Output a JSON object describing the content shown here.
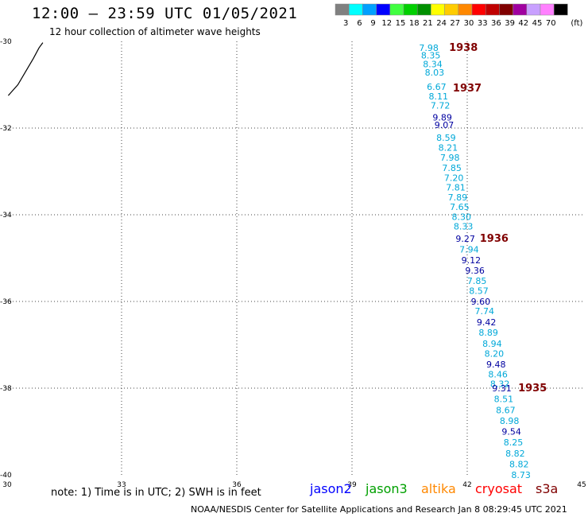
{
  "header": {
    "title": "12:00 – 23:59 UTC 01/05/2021",
    "subtitle": "12 hour collection of altimeter wave heights"
  },
  "colorbar": {
    "unit": "(ft)",
    "bins": [
      {
        "label": "3",
        "color": "#808080"
      },
      {
        "label": "6",
        "color": "#00ffff"
      },
      {
        "label": "9",
        "color": "#00a0ff"
      },
      {
        "label": "12",
        "color": "#0000ff"
      },
      {
        "label": "15",
        "color": "#40ff40"
      },
      {
        "label": "18",
        "color": "#00d000"
      },
      {
        "label": "21",
        "color": "#009000"
      },
      {
        "label": "24",
        "color": "#ffff00"
      },
      {
        "label": "27",
        "color": "#ffcc00"
      },
      {
        "label": "30",
        "color": "#ff8800"
      },
      {
        "label": "33",
        "color": "#ff0000"
      },
      {
        "label": "36",
        "color": "#c00000"
      },
      {
        "label": "39",
        "color": "#800000"
      },
      {
        "label": "42",
        "color": "#a000a0"
      },
      {
        "label": "45",
        "color": "#c8a0ff"
      },
      {
        "label": "70",
        "color": "#ff80ff"
      },
      {
        "label": "",
        "color": "#000000"
      }
    ]
  },
  "map": {
    "lon_range": [
      30,
      45
    ],
    "lat_range": [
      -30,
      -40
    ],
    "lon_ticks": [
      "30",
      "33",
      "36",
      "39",
      "42",
      "45"
    ],
    "lat_ticks": [
      "-30",
      "-32",
      "-34",
      "-36",
      "-38",
      "-40"
    ],
    "coastline": [
      [
        30.05,
        -31.25
      ],
      [
        30.3,
        -31.0
      ],
      [
        30.5,
        -30.7
      ],
      [
        30.7,
        -30.4
      ],
      [
        30.85,
        -30.15
      ],
      [
        30.95,
        -30.03
      ]
    ],
    "track_color_light": "#00a8d8",
    "track_color_dark": "#0000a0",
    "time_color": "#800000",
    "observations": [
      {
        "lat": -30.15,
        "lon": 41.0,
        "value": "7.98",
        "c": "l"
      },
      {
        "lat": -30.32,
        "lon": 41.05,
        "value": "8.35",
        "c": "l"
      },
      {
        "lat": -30.52,
        "lon": 41.1,
        "value": "8.34",
        "c": "l"
      },
      {
        "lat": -30.72,
        "lon": 41.15,
        "value": "8.03",
        "c": "l"
      },
      {
        "lat": -31.05,
        "lon": 41.2,
        "value": "6.67",
        "c": "l"
      },
      {
        "lat": -31.27,
        "lon": 41.25,
        "value": "8.11",
        "c": "l"
      },
      {
        "lat": -31.48,
        "lon": 41.3,
        "value": "7.72",
        "c": "l"
      },
      {
        "lat": -31.75,
        "lon": 41.35,
        "value": "9.89",
        "c": "d"
      },
      {
        "lat": -31.93,
        "lon": 41.4,
        "value": "9.07",
        "c": "d"
      },
      {
        "lat": -32.22,
        "lon": 41.45,
        "value": "8.59",
        "c": "l"
      },
      {
        "lat": -32.45,
        "lon": 41.5,
        "value": "8.21",
        "c": "l"
      },
      {
        "lat": -32.68,
        "lon": 41.55,
        "value": "7.98",
        "c": "l"
      },
      {
        "lat": -32.92,
        "lon": 41.6,
        "value": "7.85",
        "c": "l"
      },
      {
        "lat": -33.15,
        "lon": 41.65,
        "value": "7.20",
        "c": "l"
      },
      {
        "lat": -33.37,
        "lon": 41.7,
        "value": "7.81",
        "c": "l"
      },
      {
        "lat": -33.6,
        "lon": 41.75,
        "value": "7.89",
        "c": "l"
      },
      {
        "lat": -33.82,
        "lon": 41.8,
        "value": "7.65",
        "c": "l"
      },
      {
        "lat": -34.05,
        "lon": 41.85,
        "value": "8.30",
        "c": "l"
      },
      {
        "lat": -34.27,
        "lon": 41.9,
        "value": "8.33",
        "c": "l"
      },
      {
        "lat": -34.55,
        "lon": 41.95,
        "value": "9.27",
        "c": "d"
      },
      {
        "lat": -34.8,
        "lon": 42.05,
        "value": "7.94",
        "c": "l"
      },
      {
        "lat": -35.05,
        "lon": 42.1,
        "value": "9.12",
        "c": "d"
      },
      {
        "lat": -35.28,
        "lon": 42.2,
        "value": "9.36",
        "c": "d"
      },
      {
        "lat": -35.52,
        "lon": 42.25,
        "value": "7.85",
        "c": "l"
      },
      {
        "lat": -35.75,
        "lon": 42.3,
        "value": "8.57",
        "c": "l"
      },
      {
        "lat": -36.0,
        "lon": 42.35,
        "value": "9.60",
        "c": "d"
      },
      {
        "lat": -36.22,
        "lon": 42.45,
        "value": "7.74",
        "c": "l"
      },
      {
        "lat": -36.48,
        "lon": 42.5,
        "value": "9.42",
        "c": "d"
      },
      {
        "lat": -36.72,
        "lon": 42.55,
        "value": "8.89",
        "c": "l"
      },
      {
        "lat": -36.97,
        "lon": 42.65,
        "value": "8.94",
        "c": "l"
      },
      {
        "lat": -37.2,
        "lon": 42.7,
        "value": "8.20",
        "c": "l"
      },
      {
        "lat": -37.45,
        "lon": 42.75,
        "value": "9.48",
        "c": "d"
      },
      {
        "lat": -37.68,
        "lon": 42.8,
        "value": "8.46",
        "c": "l"
      },
      {
        "lat": -37.9,
        "lon": 42.85,
        "value": "8.32",
        "c": "l"
      },
      {
        "lat": -38.0,
        "lon": 42.9,
        "value": "9.31",
        "c": "d"
      },
      {
        "lat": -38.25,
        "lon": 42.95,
        "value": "8.51",
        "c": "l"
      },
      {
        "lat": -38.5,
        "lon": 43.0,
        "value": "8.67",
        "c": "l"
      },
      {
        "lat": -38.75,
        "lon": 43.1,
        "value": "8.98",
        "c": "l"
      },
      {
        "lat": -39.0,
        "lon": 43.15,
        "value": "9.54",
        "c": "d"
      },
      {
        "lat": -39.25,
        "lon": 43.2,
        "value": "8.25",
        "c": "l"
      },
      {
        "lat": -39.5,
        "lon": 43.25,
        "value": "8.82",
        "c": "l"
      },
      {
        "lat": -39.75,
        "lon": 43.35,
        "value": "8.82",
        "c": "l"
      },
      {
        "lat": -40.0,
        "lon": 43.4,
        "value": "8.73",
        "c": "l"
      }
    ],
    "time_labels": [
      {
        "lat": -30.15,
        "lon": 41.9,
        "value": "1938"
      },
      {
        "lat": -31.08,
        "lon": 42.0,
        "value": "1937"
      },
      {
        "lat": -34.55,
        "lon": 42.7,
        "value": "1936"
      },
      {
        "lat": -38.0,
        "lon": 43.7,
        "value": "1935"
      }
    ]
  },
  "note": "note: 1) Time is in UTC; 2) SWH is in feet",
  "satellites": [
    {
      "name": "jason2",
      "color": "#0000ff"
    },
    {
      "name": "jason3",
      "color": "#00a000"
    },
    {
      "name": "altika",
      "color": "#ff8800"
    },
    {
      "name": "cryosat",
      "color": "#ff0000"
    },
    {
      "name": "s3a",
      "color": "#800000"
    }
  ],
  "footer": "NOAA/NESDIS Center for Satellite Applications and Research   Jan  8 08:29:45 UTC 2021"
}
